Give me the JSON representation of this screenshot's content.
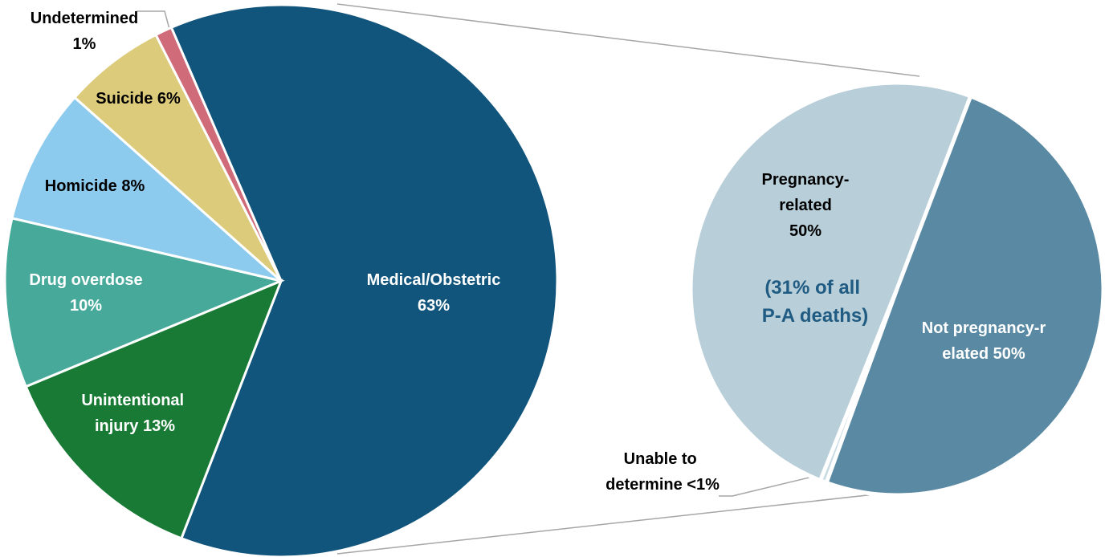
{
  "chart_data": [
    {
      "type": "pie",
      "categories": [
        "Medical/Obstetric",
        "Unintentional injury",
        "Drug overdose",
        "Homicide",
        "Suicide",
        "Undetermined"
      ],
      "values": [
        63,
        13,
        10,
        8,
        6,
        1
      ],
      "value_labels": [
        "63%",
        "13%",
        "10%",
        "8%",
        "6%",
        "1%"
      ],
      "colors": [
        "#12557c",
        "#187a34",
        "#46a99a",
        "#8dcbee",
        "#dccb7a",
        "#d06b7a"
      ]
    },
    {
      "type": "pie",
      "categories": [
        "Pregnancy-related",
        "Not pregnancy-related",
        "Unable to determine"
      ],
      "values": [
        50,
        50,
        0.5
      ],
      "value_labels": [
        "50%",
        "50%",
        "<1%"
      ],
      "colors": [
        "#b8ced8",
        "#5a8aa3",
        "#c9dbe3"
      ],
      "annotation": "(31% of all P-A deaths)"
    }
  ]
}
